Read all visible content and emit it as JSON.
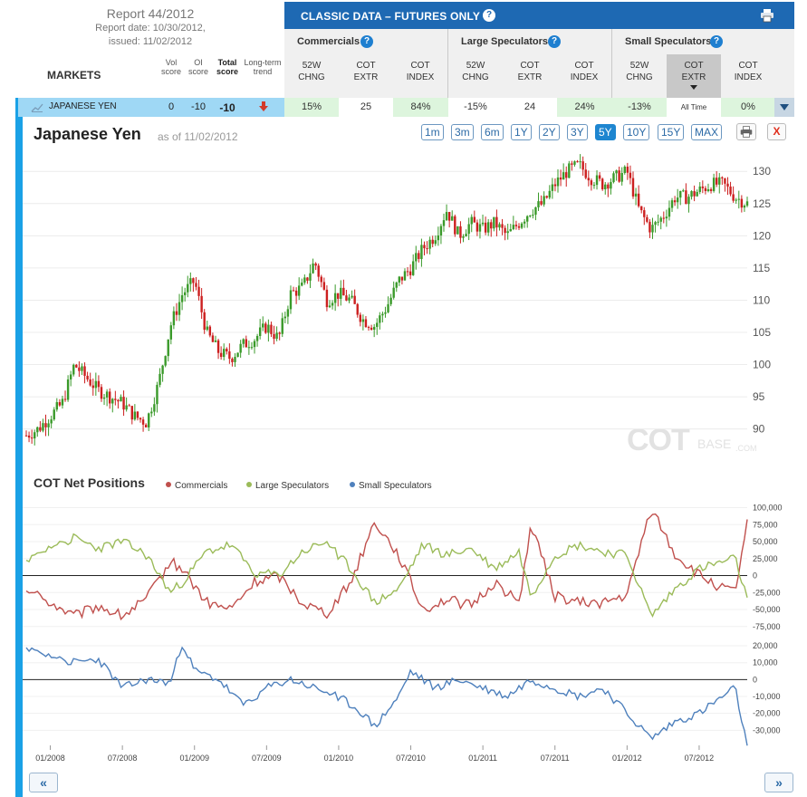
{
  "report": {
    "title": "Report 44/2012",
    "report_date": "Report date: 10/30/2012,",
    "issued": "issued: 11/02/2012"
  },
  "header": {
    "classic_title": "CLASSIC DATA – FUTURES ONLY",
    "help": "?",
    "markets_label": "MARKETS",
    "vol_score": [
      "Vol",
      "score"
    ],
    "oi_score": [
      "OI",
      "score"
    ],
    "total_score": [
      "Total",
      "score"
    ],
    "long_term_trend": [
      "Long-term",
      "trend"
    ],
    "groups": [
      "Commercials",
      "Large Speculators",
      "Small Speculators"
    ],
    "columns": [
      [
        "52W",
        "CHNG"
      ],
      [
        "COT",
        "EXTR"
      ],
      [
        "COT",
        "INDEX"
      ],
      [
        "52W",
        "CHNG"
      ],
      [
        "COT",
        "EXTR"
      ],
      [
        "COT",
        "INDEX"
      ],
      [
        "52W",
        "CHNG"
      ],
      [
        "COT",
        "EXTR"
      ],
      [
        "COT",
        "INDEX"
      ]
    ]
  },
  "market_row": {
    "name": "JAPANESE YEN",
    "vol_score": "0",
    "oi_score": "-10",
    "total_score": "-10",
    "trend": "down",
    "values": [
      "15%",
      "25",
      "84%",
      "-15%",
      "24",
      "24%",
      "-13%",
      "All Time",
      "0%"
    ]
  },
  "chart": {
    "title": "Japanese Yen",
    "as_of": "as of 11/02/2012",
    "ranges": [
      "1m",
      "3m",
      "6m",
      "1Y",
      "2Y",
      "3Y",
      "5Y",
      "10Y",
      "15Y",
      "MAX"
    ],
    "active_range": "5Y",
    "close_label": "X",
    "watermark": "COT",
    "watermark_sub": "BASE",
    "watermark_dom": ".COM"
  },
  "colors": {
    "header_blue": "#1e69b3",
    "accent_cyan": "#1aa1e6",
    "up_candle": "#3a9a2a",
    "down_candle": "#cc1f1f",
    "commercials": "#c0504d",
    "large_speculators": "#9bbb59",
    "small_speculators": "#4f81bd"
  },
  "chart_data": [
    {
      "type": "candlestick",
      "title": "Japanese Yen",
      "x_range": [
        "11/2007",
        "11/2012"
      ],
      "ylim": [
        87,
        132
      ],
      "y_ticks": [
        90,
        95,
        100,
        105,
        110,
        115,
        120,
        125,
        130
      ],
      "close_path": [
        [
          "11/2007",
          89
        ],
        [
          "12/2007",
          90
        ],
        [
          "01/2008",
          92
        ],
        [
          "02/2008",
          94
        ],
        [
          "03/2008",
          100
        ],
        [
          "04/2008",
          98
        ],
        [
          "05/2008",
          96
        ],
        [
          "06/2008",
          95
        ],
        [
          "07/2008",
          94
        ],
        [
          "08/2008",
          92
        ],
        [
          "09/2008",
          91
        ],
        [
          "10/2008",
          97
        ],
        [
          "11/2008",
          106
        ],
        [
          "12/2008",
          111
        ],
        [
          "01/2009",
          113
        ],
        [
          "02/2009",
          105
        ],
        [
          "03/2009",
          102
        ],
        [
          "04/2009",
          101
        ],
        [
          "05/2009",
          103
        ],
        [
          "06/2009",
          104
        ],
        [
          "07/2009",
          106
        ],
        [
          "08/2009",
          104
        ],
        [
          "09/2009",
          111
        ],
        [
          "10/2009",
          112
        ],
        [
          "11/2009",
          116
        ],
        [
          "12/2009",
          110
        ],
        [
          "01/2010",
          111
        ],
        [
          "02/2010",
          110
        ],
        [
          "03/2010",
          107
        ],
        [
          "04/2010",
          106
        ],
        [
          "05/2010",
          109
        ],
        [
          "06/2010",
          113
        ],
        [
          "07/2010",
          115
        ],
        [
          "08/2010",
          118
        ],
        [
          "09/2010",
          120
        ],
        [
          "10/2010",
          124
        ],
        [
          "11/2010",
          120
        ],
        [
          "12/2010",
          122
        ],
        [
          "01/2011",
          121
        ],
        [
          "02/2011",
          122
        ],
        [
          "03/2011",
          120
        ],
        [
          "04/2011",
          122
        ],
        [
          "05/2011",
          124
        ],
        [
          "06/2011",
          125
        ],
        [
          "07/2011",
          128
        ],
        [
          "08/2011",
          130
        ],
        [
          "09/2011",
          131
        ],
        [
          "10/2011",
          129
        ],
        [
          "11/2011",
          128
        ],
        [
          "12/2011",
          129
        ],
        [
          "01/2012",
          130
        ],
        [
          "02/2012",
          124
        ],
        [
          "03/2012",
          121
        ],
        [
          "04/2012",
          123
        ],
        [
          "05/2012",
          126
        ],
        [
          "06/2012",
          126
        ],
        [
          "07/2012",
          127
        ],
        [
          "08/2012",
          128
        ],
        [
          "09/2012",
          128
        ],
        [
          "10/2012",
          126
        ],
        [
          "11/2012",
          125
        ]
      ]
    },
    {
      "type": "line",
      "title": "COT Net Positions",
      "x_labels": [
        "01/2008",
        "07/2008",
        "01/2009",
        "07/2009",
        "01/2010",
        "07/2010",
        "01/2011",
        "07/2011",
        "01/2012",
        "07/2012"
      ],
      "upper_panel": {
        "ylim": [
          -90000,
          110000
        ],
        "y_ticks": [
          100000,
          75000,
          50000,
          25000,
          0,
          -25000,
          -50000,
          -75000
        ],
        "y_tick_labels": [
          "100,000",
          "75,000",
          "50,000",
          "25,000",
          "0",
          "-25,000",
          "-50,000",
          "-75,000"
        ],
        "series": [
          {
            "name": "Commercials",
            "values": [
              [
                "11/2007",
                -20000
              ],
              [
                "01/2008",
                -40000
              ],
              [
                "03/2008",
                -60000
              ],
              [
                "05/2008",
                -45000
              ],
              [
                "07/2008",
                -60000
              ],
              [
                "09/2008",
                -35000
              ],
              [
                "11/2008",
                20000
              ],
              [
                "12/2008",
                10000
              ],
              [
                "02/2009",
                -40000
              ],
              [
                "04/2009",
                -50000
              ],
              [
                "06/2009",
                -10000
              ],
              [
                "08/2009",
                0
              ],
              [
                "10/2009",
                -40000
              ],
              [
                "12/2009",
                -55000
              ],
              [
                "02/2010",
                -10000
              ],
              [
                "04/2010",
                80000
              ],
              [
                "06/2010",
                30000
              ],
              [
                "08/2010",
                -50000
              ],
              [
                "10/2010",
                -35000
              ],
              [
                "12/2010",
                -45000
              ],
              [
                "02/2011",
                -10000
              ],
              [
                "04/2011",
                -40000
              ],
              [
                "05/2011",
                75000
              ],
              [
                "07/2011",
                -30000
              ],
              [
                "09/2011",
                -40000
              ],
              [
                "11/2011",
                -40000
              ],
              [
                "01/2012",
                -30000
              ],
              [
                "03/2012",
                100000
              ],
              [
                "05/2012",
                30000
              ],
              [
                "07/2012",
                0
              ],
              [
                "09/2012",
                -20000
              ],
              [
                "10/2012",
                -25000
              ],
              [
                "11/2012",
                75000
              ]
            ]
          },
          {
            "name": "Large Speculators",
            "values": [
              [
                "11/2007",
                20000
              ],
              [
                "01/2008",
                45000
              ],
              [
                "03/2008",
                55000
              ],
              [
                "05/2008",
                40000
              ],
              [
                "07/2008",
                50000
              ],
              [
                "09/2008",
                30000
              ],
              [
                "11/2008",
                -25000
              ],
              [
                "12/2008",
                -10000
              ],
              [
                "02/2009",
                35000
              ],
              [
                "04/2009",
                45000
              ],
              [
                "06/2009",
                5000
              ],
              [
                "08/2009",
                0
              ],
              [
                "10/2009",
                35000
              ],
              [
                "12/2009",
                50000
              ],
              [
                "02/2010",
                10000
              ],
              [
                "04/2010",
                -40000
              ],
              [
                "06/2010",
                -20000
              ],
              [
                "08/2010",
                45000
              ],
              [
                "10/2010",
                30000
              ],
              [
                "12/2010",
                40000
              ],
              [
                "02/2011",
                10000
              ],
              [
                "04/2011",
                35000
              ],
              [
                "05/2011",
                -30000
              ],
              [
                "07/2011",
                30000
              ],
              [
                "09/2011",
                45000
              ],
              [
                "11/2011",
                35000
              ],
              [
                "01/2012",
                30000
              ],
              [
                "03/2012",
                -60000
              ],
              [
                "05/2012",
                -20000
              ],
              [
                "07/2012",
                10000
              ],
              [
                "09/2012",
                20000
              ],
              [
                "10/2012",
                25000
              ],
              [
                "11/2012",
                -35000
              ]
            ]
          }
        ]
      },
      "lower_panel": {
        "ylim": [
          -40000,
          27000
        ],
        "y_ticks": [
          20000,
          10000,
          0,
          -10000,
          -20000,
          -30000
        ],
        "y_tick_labels": [
          "20,000",
          "10,000",
          "0",
          "-10,000",
          "-20,000",
          "-30,000"
        ],
        "series": [
          {
            "name": "Small Speculators",
            "values": [
              [
                "11/2007",
                18000
              ],
              [
                "01/2008",
                15000
              ],
              [
                "03/2008",
                10000
              ],
              [
                "05/2008",
                12000
              ],
              [
                "07/2008",
                -5000
              ],
              [
                "09/2008",
                0
              ],
              [
                "11/2008",
                -2000
              ],
              [
                "12/2008",
                22000
              ],
              [
                "01/2009",
                5000
              ],
              [
                "03/2009",
                0
              ],
              [
                "05/2009",
                -15000
              ],
              [
                "07/2009",
                -5000
              ],
              [
                "09/2009",
                0
              ],
              [
                "11/2009",
                -5000
              ],
              [
                "01/2010",
                -10000
              ],
              [
                "03/2010",
                -20000
              ],
              [
                "04/2010",
                -28000
              ],
              [
                "06/2010",
                -10000
              ],
              [
                "07/2010",
                5000
              ],
              [
                "09/2010",
                -5000
              ],
              [
                "11/2010",
                0
              ],
              [
                "01/2011",
                -5000
              ],
              [
                "03/2011",
                -10000
              ],
              [
                "05/2011",
                0
              ],
              [
                "07/2011",
                -5000
              ],
              [
                "09/2011",
                -10000
              ],
              [
                "11/2011",
                -5000
              ],
              [
                "01/2012",
                -20000
              ],
              [
                "03/2012",
                -35000
              ],
              [
                "05/2012",
                -25000
              ],
              [
                "07/2012",
                -20000
              ],
              [
                "09/2012",
                -10000
              ],
              [
                "10/2012",
                -5000
              ],
              [
                "11/2012",
                -40000
              ]
            ]
          }
        ]
      }
    }
  ]
}
